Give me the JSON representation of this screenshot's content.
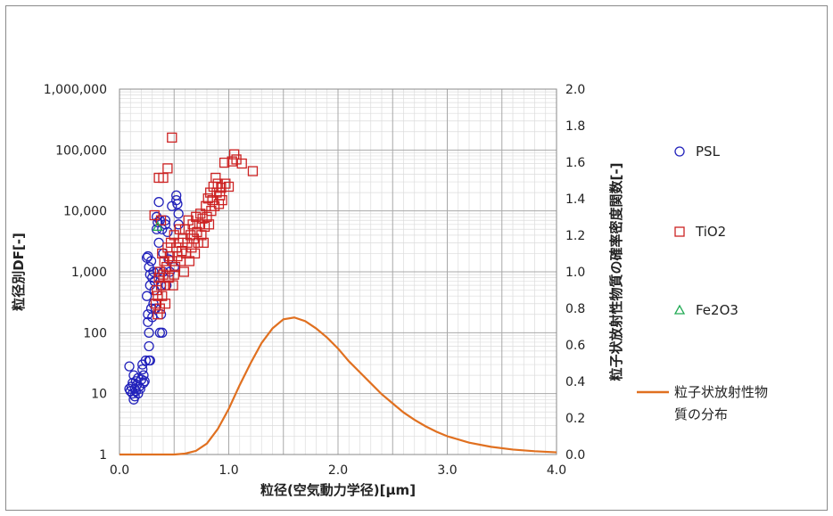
{
  "chart_data": {
    "type": "scatter",
    "xlabel": "粒径(空気動力学径)[μm]",
    "ylabel_left": "粒径別DF[-]",
    "ylabel_right": "粒子状放射性物質の確率密度関数[-]",
    "xlim": [
      0.0,
      4.0
    ],
    "x_ticks": [
      "0.0",
      "1.0",
      "2.0",
      "3.0",
      "4.0"
    ],
    "ylim_left": [
      1,
      1000000
    ],
    "y_scale_left": "log",
    "y_ticks_left": [
      "1",
      "10",
      "100",
      "1,000",
      "10,000",
      "100,000",
      "1,000,000"
    ],
    "ylim_right": [
      0.0,
      2.0
    ],
    "y_ticks_right": [
      "0.0",
      "0.2",
      "0.4",
      "0.6",
      "0.8",
      "1.0",
      "1.2",
      "1.4",
      "1.6",
      "1.8",
      "2.0"
    ],
    "grid": "on",
    "legend_position": "right",
    "series": [
      {
        "name": "PSL",
        "marker": "circle",
        "color": "#2222bb",
        "axis": "left",
        "points": [
          [
            0.09,
            28
          ],
          [
            0.09,
            12
          ],
          [
            0.1,
            11
          ],
          [
            0.11,
            13
          ],
          [
            0.12,
            10
          ],
          [
            0.12,
            15
          ],
          [
            0.13,
            8
          ],
          [
            0.13,
            20
          ],
          [
            0.14,
            12
          ],
          [
            0.14,
            9
          ],
          [
            0.15,
            16
          ],
          [
            0.15,
            11
          ],
          [
            0.16,
            14
          ],
          [
            0.17,
            10
          ],
          [
            0.17,
            18
          ],
          [
            0.18,
            13
          ],
          [
            0.19,
            12
          ],
          [
            0.2,
            17
          ],
          [
            0.21,
            25
          ],
          [
            0.21,
            30
          ],
          [
            0.22,
            15
          ],
          [
            0.22,
            20
          ],
          [
            0.23,
            16
          ],
          [
            0.24,
            35
          ],
          [
            0.25,
            400
          ],
          [
            0.25,
            1700
          ],
          [
            0.26,
            1800
          ],
          [
            0.26,
            150
          ],
          [
            0.26,
            200
          ],
          [
            0.27,
            100
          ],
          [
            0.27,
            60
          ],
          [
            0.27,
            35
          ],
          [
            0.27,
            1200
          ],
          [
            0.28,
            35
          ],
          [
            0.28,
            900
          ],
          [
            0.28,
            600
          ],
          [
            0.29,
            250
          ],
          [
            0.29,
            1500
          ],
          [
            0.3,
            180
          ],
          [
            0.3,
            800
          ],
          [
            0.31,
            300
          ],
          [
            0.31,
            1000
          ],
          [
            0.32,
            500
          ],
          [
            0.32,
            700
          ],
          [
            0.33,
            250
          ],
          [
            0.34,
            8000
          ],
          [
            0.34,
            5000
          ],
          [
            0.35,
            6500
          ],
          [
            0.35,
            1000
          ],
          [
            0.36,
            14000
          ],
          [
            0.36,
            3000
          ],
          [
            0.37,
            7000
          ],
          [
            0.37,
            100
          ],
          [
            0.38,
            600
          ],
          [
            0.38,
            200
          ],
          [
            0.39,
            5000
          ],
          [
            0.39,
            100
          ],
          [
            0.4,
            1000
          ],
          [
            0.4,
            2000
          ],
          [
            0.42,
            6000
          ],
          [
            0.42,
            7000
          ],
          [
            0.43,
            600
          ],
          [
            0.44,
            4500
          ],
          [
            0.45,
            1600
          ],
          [
            0.46,
            1000
          ],
          [
            0.48,
            12000
          ],
          [
            0.5,
            1200
          ],
          [
            0.52,
            18000
          ],
          [
            0.52,
            15000
          ],
          [
            0.53,
            13000
          ],
          [
            0.54,
            9000
          ],
          [
            0.54,
            6000
          ]
        ]
      },
      {
        "name": "TiO2",
        "marker": "square",
        "color": "#cc2222",
        "axis": "left",
        "points": [
          [
            0.32,
            8500
          ],
          [
            0.33,
            300
          ],
          [
            0.34,
            500
          ],
          [
            0.35,
            200
          ],
          [
            0.35,
            400
          ],
          [
            0.36,
            35000
          ],
          [
            0.36,
            800
          ],
          [
            0.37,
            1000
          ],
          [
            0.37,
            250
          ],
          [
            0.38,
            600
          ],
          [
            0.38,
            7000
          ],
          [
            0.39,
            400
          ],
          [
            0.39,
            2000
          ],
          [
            0.4,
            35000
          ],
          [
            0.4,
            900
          ],
          [
            0.41,
            1500
          ],
          [
            0.42,
            300
          ],
          [
            0.42,
            600
          ],
          [
            0.43,
            1200
          ],
          [
            0.44,
            50000
          ],
          [
            0.44,
            2500
          ],
          [
            0.45,
            800
          ],
          [
            0.46,
            1800
          ],
          [
            0.47,
            3000
          ],
          [
            0.48,
            160000
          ],
          [
            0.48,
            1500
          ],
          [
            0.49,
            600
          ],
          [
            0.5,
            4000
          ],
          [
            0.5,
            900
          ],
          [
            0.51,
            1200
          ],
          [
            0.52,
            2500
          ],
          [
            0.53,
            1800
          ],
          [
            0.54,
            3000
          ],
          [
            0.55,
            5000
          ],
          [
            0.56,
            1500
          ],
          [
            0.57,
            2200
          ],
          [
            0.58,
            3500
          ],
          [
            0.59,
            1000
          ],
          [
            0.6,
            5000
          ],
          [
            0.61,
            2000
          ],
          [
            0.62,
            3000
          ],
          [
            0.63,
            7000
          ],
          [
            0.64,
            1500
          ],
          [
            0.65,
            4000
          ],
          [
            0.66,
            2500
          ],
          [
            0.67,
            6000
          ],
          [
            0.68,
            3500
          ],
          [
            0.69,
            2000
          ],
          [
            0.7,
            8000
          ],
          [
            0.71,
            4500
          ],
          [
            0.72,
            3000
          ],
          [
            0.73,
            6000
          ],
          [
            0.74,
            9000
          ],
          [
            0.75,
            4000
          ],
          [
            0.76,
            7500
          ],
          [
            0.77,
            3000
          ],
          [
            0.78,
            5500
          ],
          [
            0.79,
            12000
          ],
          [
            0.8,
            8000
          ],
          [
            0.81,
            16000
          ],
          [
            0.82,
            6000
          ],
          [
            0.83,
            20000
          ],
          [
            0.84,
            10000
          ],
          [
            0.85,
            15000
          ],
          [
            0.86,
            25000
          ],
          [
            0.87,
            12000
          ],
          [
            0.88,
            35000
          ],
          [
            0.89,
            20000
          ],
          [
            0.9,
            28000
          ],
          [
            0.91,
            13000
          ],
          [
            0.92,
            18000
          ],
          [
            0.93,
            24000
          ],
          [
            0.94,
            15000
          ],
          [
            0.96,
            62000
          ],
          [
            0.97,
            28000
          ],
          [
            1.0,
            25000
          ],
          [
            1.03,
            65000
          ],
          [
            1.05,
            85000
          ],
          [
            1.07,
            70000
          ],
          [
            1.12,
            60000
          ],
          [
            1.22,
            45000
          ]
        ]
      },
      {
        "name": "Fe2O3",
        "marker": "triangle",
        "color": "#22aa55",
        "axis": "left",
        "points": [
          [
            0.35,
            5500
          ]
        ]
      },
      {
        "name": "粒子状放射性物質の分布",
        "marker": "line",
        "color": "#e07020",
        "axis": "right",
        "points": [
          [
            0.0,
            0.0
          ],
          [
            0.5,
            0.0
          ],
          [
            0.6,
            0.005
          ],
          [
            0.7,
            0.02
          ],
          [
            0.8,
            0.06
          ],
          [
            0.9,
            0.14
          ],
          [
            1.0,
            0.25
          ],
          [
            1.1,
            0.38
          ],
          [
            1.2,
            0.5
          ],
          [
            1.3,
            0.61
          ],
          [
            1.4,
            0.69
          ],
          [
            1.5,
            0.74
          ],
          [
            1.6,
            0.75
          ],
          [
            1.7,
            0.73
          ],
          [
            1.8,
            0.69
          ],
          [
            1.9,
            0.64
          ],
          [
            2.0,
            0.58
          ],
          [
            2.1,
            0.51
          ],
          [
            2.2,
            0.45
          ],
          [
            2.3,
            0.39
          ],
          [
            2.4,
            0.33
          ],
          [
            2.5,
            0.28
          ],
          [
            2.6,
            0.23
          ],
          [
            2.7,
            0.19
          ],
          [
            2.8,
            0.155
          ],
          [
            2.9,
            0.125
          ],
          [
            3.0,
            0.1
          ],
          [
            3.2,
            0.065
          ],
          [
            3.4,
            0.042
          ],
          [
            3.6,
            0.027
          ],
          [
            3.8,
            0.018
          ],
          [
            4.0,
            0.012
          ]
        ]
      }
    ]
  }
}
